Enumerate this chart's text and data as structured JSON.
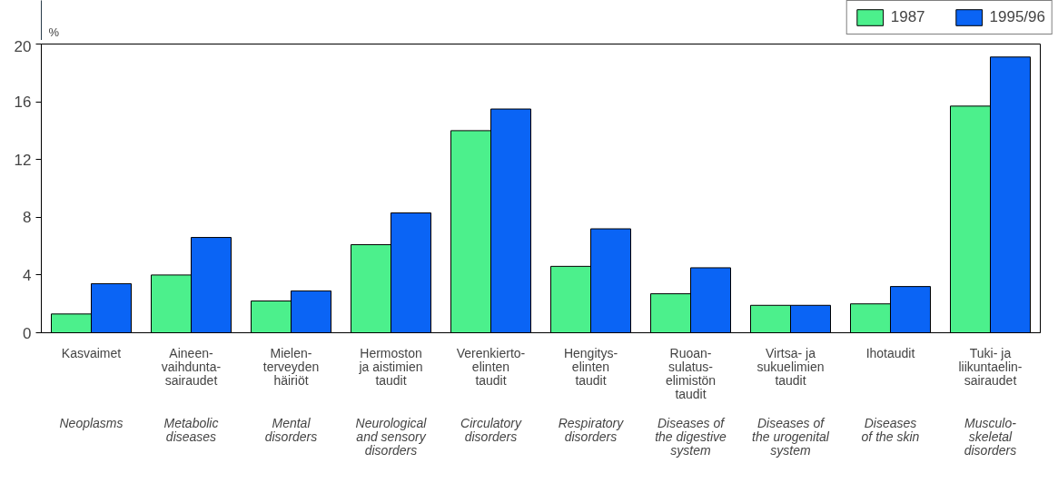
{
  "chart_data": {
    "type": "bar",
    "ylabel": "%",
    "categories": [
      "Kasvaimet",
      "Aineen-\nvaihdunta-\nsairaudet",
      "Mielen-\nterveyden\nhäiriöt",
      "Hermoston\nja aistimien\ntaudit",
      "Verenkierto-\nelinten\ntaudit",
      "Hengitys-\nelinten\ntaudit",
      "Ruoan-\nsulatus-\nelimistön\ntaudit",
      "Virtsa- ja\nsukuelimien\ntaudit",
      "Ihotaudit",
      "Tuki- ja\nliikuntaelin-\nsairaudet"
    ],
    "series": [
      {
        "name": "1987",
        "color": "#4cf08c",
        "values": [
          1.3,
          4.0,
          2.2,
          6.1,
          14.0,
          4.6,
          2.7,
          1.9,
          2.0,
          15.7
        ]
      },
      {
        "name": "1995/96",
        "color": "#0a64f5",
        "values": [
          3.4,
          6.6,
          2.9,
          8.3,
          15.5,
          7.2,
          4.5,
          1.9,
          3.2,
          19.1
        ]
      }
    ],
    "ylim": [
      0,
      20
    ],
    "yticks": [
      0,
      4,
      8,
      12,
      16,
      20
    ],
    "grid": false,
    "legend": "top right",
    "annotations": [
      "Neoplasms",
      "Metabolic\ndiseases",
      "Mental\ndisorders",
      "Neurological\nand sensory\ndisorders",
      "Circulatory\ndisorders",
      "Respiratory\ndisorders",
      "Diseases of\nthe digestive\nsystem",
      "Diseases of\nthe urogenital\nsystem",
      "Diseases\nof the skin",
      "Musculo-\nskeletal\ndisorders"
    ]
  }
}
